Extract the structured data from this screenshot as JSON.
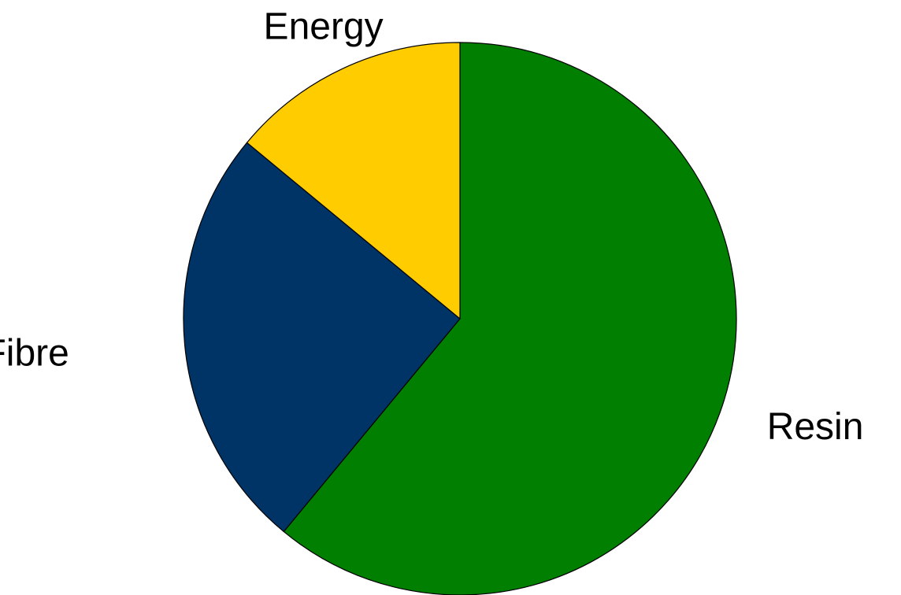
{
  "chart_data": {
    "type": "pie",
    "title": "",
    "categories": [
      "Resin",
      "Fibre",
      "Energy"
    ],
    "values": [
      61,
      25,
      14
    ],
    "colors": [
      "#007F00",
      "#003366",
      "#FFCC00"
    ],
    "start_angle_deg": 0,
    "direction": "clockwise",
    "legend": "none"
  }
}
